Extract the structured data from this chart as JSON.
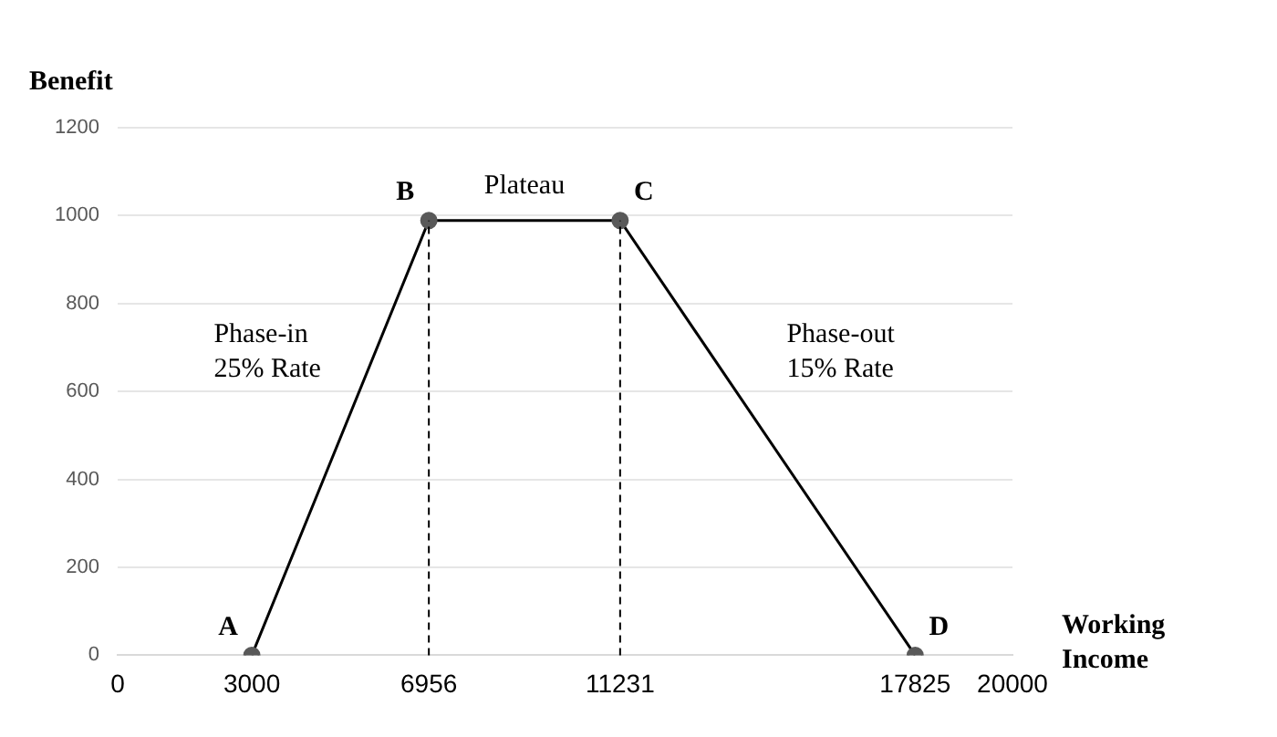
{
  "chart_data": {
    "type": "line",
    "xlabel": "Working Income",
    "ylabel": "Benefit",
    "x": [
      3000,
      6956,
      11231,
      17825
    ],
    "series": [
      {
        "color": "#000000",
        "values": [
          0,
          989,
          989,
          0
        ]
      }
    ],
    "marker": "circle",
    "xlim": [
      0,
      20000
    ],
    "xticks": [
      0,
      3000,
      6956,
      11231,
      17825,
      20000
    ],
    "ylim": [
      0,
      1200
    ],
    "yticks": [
      0,
      200,
      400,
      600,
      800,
      1000,
      1200
    ],
    "grid": "y",
    "legend": false,
    "ref_lines": [
      {
        "axis": "x",
        "value": 6956,
        "line_style": "dashed"
      },
      {
        "axis": "x",
        "value": 11231,
        "line_style": "dashed"
      }
    ],
    "annotations": [
      {
        "text": "A",
        "x": 3000,
        "y": 0
      },
      {
        "text": "B",
        "x": 6956,
        "y": 989
      },
      {
        "text": "C",
        "x": 11231,
        "y": 989
      },
      {
        "text": "D",
        "x": 17825,
        "y": 0
      },
      {
        "text": "Plateau",
        "x": 9093.5,
        "y": 989
      },
      {
        "text": "Phase-in\n25% Rate",
        "x": 4978,
        "y": 494.5
      },
      {
        "text": "Phase-out\n15% Rate",
        "x": 14528,
        "y": 494.5
      }
    ]
  }
}
